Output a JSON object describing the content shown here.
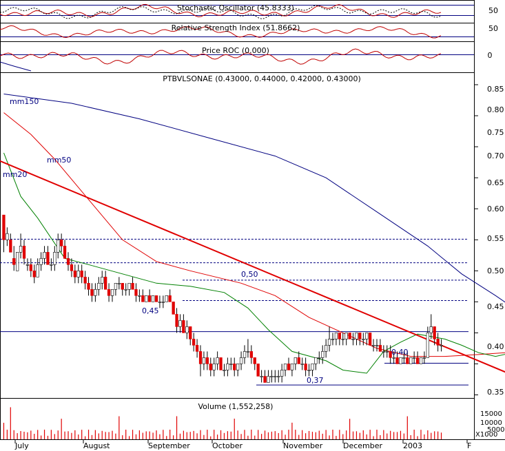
{
  "chart_data": {
    "type": "candlestick",
    "title": "PTBVLSONAE (0.43000, 0.44000, 0.42000, 0.43000)",
    "symbol": "PTBVLSONAE",
    "last_ohlc": {
      "open": 0.43,
      "high": 0.44,
      "low": 0.42,
      "close": 0.43
    },
    "colors": {
      "up": "#ffffff",
      "down": "#e00000",
      "ma20": "#008000",
      "ma50": "#e00000",
      "ma150": "#000080",
      "trendline": "#e00000",
      "hline": "#000080"
    },
    "x_labels": [
      "July",
      "August",
      "September",
      "October",
      "November",
      "December",
      "2003",
      "F"
    ],
    "y_ticks": [
      "0.85",
      "0.80",
      "0.75",
      "0.70",
      "0.65",
      "0.60",
      "0.55",
      "0.50",
      "0.45",
      "0.40",
      "0.35"
    ],
    "ylim": [
      0.345,
      0.87
    ],
    "indicators": [
      {
        "id": "stochastic",
        "label": "Stochastic Oscillator (45.8333)",
        "ticks": [
          "50",
          "50"
        ]
      },
      {
        "id": "rsi",
        "label": "Relative Strength Index (51.8662)",
        "ticks": [
          "50"
        ]
      },
      {
        "id": "roc",
        "label": "Price ROC (0.000)",
        "ticks": [
          "0"
        ]
      },
      {
        "id": "volume",
        "label": "Volume (1,552,258)",
        "ticks": [
          "15000",
          "10000",
          "5000",
          "X1000"
        ]
      }
    ],
    "moving_averages": [
      {
        "name": "mm150",
        "label": "mm150"
      },
      {
        "name": "mm50",
        "label": "mm50"
      },
      {
        "name": "mm20",
        "label": "mm20"
      }
    ],
    "annotations": [
      "0,50",
      "0,45",
      "0,40",
      "0,37"
    ],
    "h_lines": {
      "solid": [
        0.452,
        0.401,
        0.366
      ],
      "dashed": [
        0.601,
        0.563,
        0.535,
        0.502
      ]
    },
    "trendline": {
      "from": {
        "x": 0,
        "y": 0.727
      },
      "to": {
        "x": 157,
        "y": 0.366
      }
    },
    "ma150_points": [
      [
        0,
        0.835
      ],
      [
        20,
        0.82
      ],
      [
        40,
        0.795
      ],
      [
        60,
        0.765
      ],
      [
        80,
        0.735
      ],
      [
        95,
        0.7
      ],
      [
        110,
        0.645
      ],
      [
        125,
        0.59
      ],
      [
        135,
        0.545
      ],
      [
        145,
        0.51
      ],
      [
        153,
        0.48
      ]
    ],
    "ma50_points": [
      [
        0,
        0.805
      ],
      [
        8,
        0.77
      ],
      [
        15,
        0.73
      ],
      [
        25,
        0.665
      ],
      [
        35,
        0.6
      ],
      [
        45,
        0.565
      ],
      [
        55,
        0.55
      ],
      [
        70,
        0.53
      ],
      [
        80,
        0.51
      ],
      [
        90,
        0.475
      ],
      [
        100,
        0.45
      ],
      [
        110,
        0.425
      ],
      [
        120,
        0.412
      ],
      [
        130,
        0.412
      ],
      [
        140,
        0.415
      ],
      [
        148,
        0.418
      ],
      [
        153,
        0.422
      ]
    ],
    "ma20_points": [
      [
        0,
        0.74
      ],
      [
        5,
        0.67
      ],
      [
        10,
        0.635
      ],
      [
        18,
        0.57
      ],
      [
        25,
        0.56
      ],
      [
        35,
        0.545
      ],
      [
        45,
        0.53
      ],
      [
        55,
        0.525
      ],
      [
        65,
        0.515
      ],
      [
        72,
        0.49
      ],
      [
        78,
        0.455
      ],
      [
        85,
        0.42
      ],
      [
        95,
        0.405
      ],
      [
        100,
        0.39
      ],
      [
        107,
        0.385
      ],
      [
        112,
        0.42
      ],
      [
        117,
        0.435
      ],
      [
        122,
        0.448
      ],
      [
        130,
        0.44
      ],
      [
        135,
        0.43
      ],
      [
        140,
        0.418
      ],
      [
        145,
        0.412
      ],
      [
        150,
        0.418
      ],
      [
        153,
        0.43
      ]
    ],
    "candles": [
      [
        0.64,
        0.64,
        0.58,
        0.6
      ],
      [
        0.6,
        0.62,
        0.59,
        0.61
      ],
      [
        0.6,
        0.61,
        0.58,
        0.58
      ],
      [
        0.57,
        0.59,
        0.55,
        0.56
      ],
      [
        0.55,
        0.58,
        0.55,
        0.58
      ],
      [
        0.58,
        0.61,
        0.57,
        0.59
      ],
      [
        0.59,
        0.6,
        0.56,
        0.57
      ],
      [
        0.56,
        0.57,
        0.55,
        0.56
      ],
      [
        0.56,
        0.57,
        0.54,
        0.55
      ],
      [
        0.55,
        0.56,
        0.53,
        0.54
      ],
      [
        0.54,
        0.57,
        0.54,
        0.56
      ],
      [
        0.56,
        0.58,
        0.55,
        0.57
      ],
      [
        0.57,
        0.59,
        0.56,
        0.58
      ],
      [
        0.58,
        0.59,
        0.56,
        0.56
      ],
      [
        0.56,
        0.57,
        0.55,
        0.56
      ],
      [
        0.56,
        0.59,
        0.55,
        0.58
      ],
      [
        0.58,
        0.61,
        0.57,
        0.6
      ],
      [
        0.6,
        0.61,
        0.58,
        0.59
      ],
      [
        0.59,
        0.6,
        0.57,
        0.57
      ],
      [
        0.57,
        0.58,
        0.55,
        0.56
      ],
      [
        0.56,
        0.57,
        0.54,
        0.55
      ],
      [
        0.55,
        0.56,
        0.53,
        0.54
      ],
      [
        0.54,
        0.56,
        0.53,
        0.55
      ],
      [
        0.55,
        0.56,
        0.53,
        0.54
      ],
      [
        0.54,
        0.55,
        0.52,
        0.53
      ],
      [
        0.53,
        0.54,
        0.51,
        0.52
      ],
      [
        0.52,
        0.53,
        0.5,
        0.51
      ],
      [
        0.51,
        0.53,
        0.5,
        0.52
      ],
      [
        0.52,
        0.54,
        0.51,
        0.53
      ],
      [
        0.53,
        0.55,
        0.52,
        0.54
      ],
      [
        0.54,
        0.55,
        0.52,
        0.52
      ],
      [
        0.52,
        0.53,
        0.5,
        0.51
      ],
      [
        0.51,
        0.52,
        0.5,
        0.52
      ],
      [
        0.52,
        0.53,
        0.51,
        0.53
      ],
      [
        0.53,
        0.54,
        0.52,
        0.53
      ],
      [
        0.53,
        0.53,
        0.51,
        0.52
      ],
      [
        0.52,
        0.53,
        0.51,
        0.52
      ],
      [
        0.52,
        0.53,
        0.51,
        0.53
      ],
      [
        0.53,
        0.54,
        0.52,
        0.52
      ],
      [
        0.52,
        0.53,
        0.5,
        0.51
      ],
      [
        0.51,
        0.52,
        0.5,
        0.51
      ],
      [
        0.51,
        0.52,
        0.5,
        0.5
      ],
      [
        0.5,
        0.51,
        0.5,
        0.51
      ],
      [
        0.51,
        0.52,
        0.5,
        0.5
      ],
      [
        0.5,
        0.51,
        0.5,
        0.51
      ],
      [
        0.51,
        0.51,
        0.5,
        0.5
      ],
      [
        0.5,
        0.51,
        0.49,
        0.5
      ],
      [
        0.5,
        0.51,
        0.49,
        0.5
      ],
      [
        0.5,
        0.51,
        0.5,
        0.51
      ],
      [
        0.51,
        0.52,
        0.5,
        0.5
      ],
      [
        0.5,
        0.5,
        0.48,
        0.48
      ],
      [
        0.48,
        0.49,
        0.45,
        0.46
      ],
      [
        0.46,
        0.48,
        0.45,
        0.47
      ],
      [
        0.47,
        0.48,
        0.45,
        0.45
      ],
      [
        0.45,
        0.47,
        0.44,
        0.46
      ],
      [
        0.46,
        0.46,
        0.43,
        0.44
      ],
      [
        0.44,
        0.45,
        0.42,
        0.43
      ],
      [
        0.43,
        0.44,
        0.41,
        0.42
      ],
      [
        0.42,
        0.43,
        0.38,
        0.4
      ],
      [
        0.4,
        0.42,
        0.39,
        0.41
      ],
      [
        0.41,
        0.42,
        0.39,
        0.4
      ],
      [
        0.4,
        0.41,
        0.38,
        0.39
      ],
      [
        0.39,
        0.41,
        0.38,
        0.4
      ],
      [
        0.4,
        0.42,
        0.39,
        0.41
      ],
      [
        0.41,
        0.41,
        0.39,
        0.39
      ],
      [
        0.39,
        0.4,
        0.38,
        0.39
      ],
      [
        0.39,
        0.41,
        0.38,
        0.4
      ],
      [
        0.4,
        0.41,
        0.39,
        0.4
      ],
      [
        0.4,
        0.41,
        0.38,
        0.39
      ],
      [
        0.39,
        0.4,
        0.38,
        0.4
      ],
      [
        0.4,
        0.42,
        0.39,
        0.41
      ],
      [
        0.41,
        0.43,
        0.4,
        0.42
      ],
      [
        0.42,
        0.44,
        0.41,
        0.42
      ],
      [
        0.42,
        0.43,
        0.4,
        0.41
      ],
      [
        0.41,
        0.41,
        0.39,
        0.4
      ],
      [
        0.4,
        0.4,
        0.38,
        0.38
      ],
      [
        0.38,
        0.39,
        0.37,
        0.38
      ],
      [
        0.38,
        0.39,
        0.37,
        0.37
      ],
      [
        0.37,
        0.39,
        0.37,
        0.38
      ],
      [
        0.38,
        0.39,
        0.37,
        0.38
      ],
      [
        0.38,
        0.39,
        0.37,
        0.38
      ],
      [
        0.38,
        0.39,
        0.37,
        0.38
      ],
      [
        0.38,
        0.4,
        0.37,
        0.39
      ],
      [
        0.39,
        0.4,
        0.38,
        0.4
      ],
      [
        0.4,
        0.41,
        0.39,
        0.39
      ],
      [
        0.39,
        0.4,
        0.38,
        0.4
      ],
      [
        0.4,
        0.41,
        0.39,
        0.41
      ],
      [
        0.41,
        0.42,
        0.4,
        0.4
      ],
      [
        0.4,
        0.41,
        0.39,
        0.4
      ],
      [
        0.4,
        0.41,
        0.38,
        0.39
      ],
      [
        0.39,
        0.4,
        0.38,
        0.39
      ],
      [
        0.39,
        0.4,
        0.38,
        0.4
      ],
      [
        0.4,
        0.41,
        0.39,
        0.41
      ],
      [
        0.41,
        0.42,
        0.4,
        0.41
      ],
      [
        0.41,
        0.43,
        0.4,
        0.42
      ],
      [
        0.42,
        0.44,
        0.41,
        0.43
      ],
      [
        0.43,
        0.46,
        0.42,
        0.44
      ],
      [
        0.44,
        0.45,
        0.43,
        0.44
      ],
      [
        0.44,
        0.45,
        0.43,
        0.45
      ],
      [
        0.45,
        0.45,
        0.43,
        0.44
      ],
      [
        0.44,
        0.45,
        0.43,
        0.44
      ],
      [
        0.44,
        0.45,
        0.43,
        0.45
      ],
      [
        0.45,
        0.45,
        0.44,
        0.44
      ],
      [
        0.44,
        0.45,
        0.43,
        0.44
      ],
      [
        0.44,
        0.45,
        0.43,
        0.45
      ],
      [
        0.45,
        0.45,
        0.43,
        0.44
      ],
      [
        0.44,
        0.45,
        0.43,
        0.44
      ],
      [
        0.44,
        0.45,
        0.43,
        0.45
      ],
      [
        0.45,
        0.45,
        0.43,
        0.43
      ],
      [
        0.43,
        0.44,
        0.42,
        0.43
      ],
      [
        0.43,
        0.44,
        0.42,
        0.43
      ],
      [
        0.43,
        0.44,
        0.42,
        0.42
      ],
      [
        0.42,
        0.43,
        0.41,
        0.42
      ],
      [
        0.42,
        0.43,
        0.41,
        0.42
      ],
      [
        0.42,
        0.43,
        0.4,
        0.41
      ],
      [
        0.41,
        0.42,
        0.4,
        0.41
      ],
      [
        0.41,
        0.42,
        0.4,
        0.4
      ],
      [
        0.4,
        0.41,
        0.4,
        0.41
      ],
      [
        0.41,
        0.42,
        0.4,
        0.41
      ],
      [
        0.41,
        0.42,
        0.4,
        0.4
      ],
      [
        0.4,
        0.41,
        0.4,
        0.41
      ],
      [
        0.41,
        0.42,
        0.4,
        0.41
      ],
      [
        0.41,
        0.42,
        0.4,
        0.4
      ],
      [
        0.4,
        0.41,
        0.4,
        0.41
      ],
      [
        0.41,
        0.42,
        0.4,
        0.41
      ],
      [
        0.41,
        0.46,
        0.41,
        0.45
      ],
      [
        0.45,
        0.48,
        0.44,
        0.46
      ],
      [
        0.46,
        0.46,
        0.43,
        0.44
      ],
      [
        0.44,
        0.45,
        0.42,
        0.43
      ],
      [
        0.43,
        0.44,
        0.42,
        0.43
      ]
    ]
  }
}
